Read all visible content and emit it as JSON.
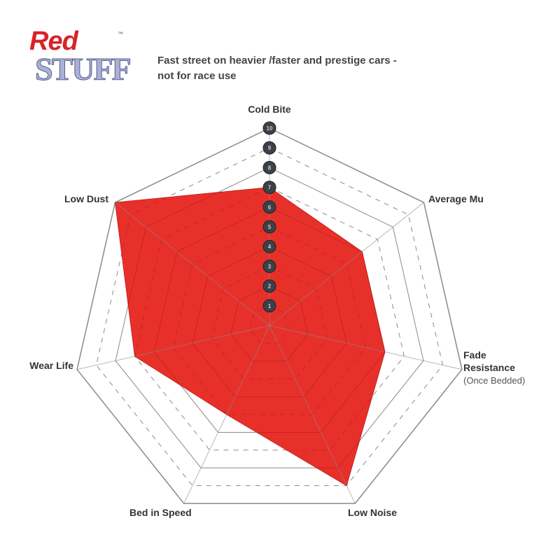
{
  "logo": {
    "line1": "Red",
    "line2": "STUFF",
    "tm": "™"
  },
  "subtitle": [
    "Fast street on heavier /faster and prestige cars -",
    "not for race use"
  ],
  "chart_data": {
    "type": "radar",
    "axes": [
      "Cold Bite",
      "Average Mu",
      "Fade Resistance",
      "Low Noise",
      "Bed in Speed",
      "Wear Life",
      "Low Dust"
    ],
    "axis_sublabels": {
      "Fade Resistance": "(Once Bedded)"
    },
    "values": [
      7,
      6,
      6,
      9,
      5,
      7,
      10
    ],
    "range": [
      0,
      10
    ],
    "ticks": [
      "1",
      "2",
      "3",
      "4",
      "5",
      "6",
      "7",
      "8",
      "9",
      "10"
    ],
    "fill_color": "#e8302a",
    "grid_color": "#8a8a8a"
  }
}
